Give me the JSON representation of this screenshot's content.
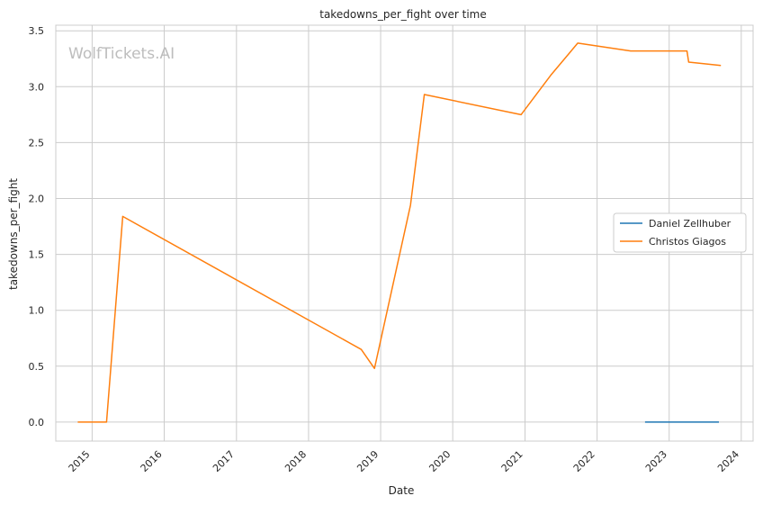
{
  "chart_data": {
    "type": "line",
    "title": "takedowns_per_fight over time",
    "xlabel": "Date",
    "ylabel": "takedowns_per_fight",
    "watermark": "WolfTickets.AI",
    "xlim": [
      "2014-07-01",
      "2024-03-01"
    ],
    "ylim": [
      -0.17,
      3.55
    ],
    "x_ticks": [
      "2015",
      "2016",
      "2017",
      "2018",
      "2019",
      "2020",
      "2021",
      "2022",
      "2023",
      "2024"
    ],
    "y_ticks": [
      "0.0",
      "0.5",
      "1.0",
      "1.5",
      "2.0",
      "2.5",
      "3.0",
      "3.5"
    ],
    "grid": true,
    "legend_position": "center-right",
    "series": [
      {
        "name": "Daniel Zellhuber",
        "color": "#1f77b4",
        "points": [
          {
            "x": "2022-09-01",
            "y": 0.0
          },
          {
            "x": "2023-09-10",
            "y": 0.0
          }
        ]
      },
      {
        "name": "Christos Giagos",
        "color": "#ff7f0e",
        "points": [
          {
            "x": "2014-10-20",
            "y": 0.0
          },
          {
            "x": "2015-03-15",
            "y": 0.0
          },
          {
            "x": "2015-06-05",
            "y": 1.84
          },
          {
            "x": "2018-09-25",
            "y": 0.65
          },
          {
            "x": "2018-12-01",
            "y": 0.48
          },
          {
            "x": "2019-06-01",
            "y": 1.94
          },
          {
            "x": "2019-08-10",
            "y": 2.93
          },
          {
            "x": "2020-12-12",
            "y": 2.75
          },
          {
            "x": "2021-05-15",
            "y": 3.11
          },
          {
            "x": "2021-09-25",
            "y": 3.39
          },
          {
            "x": "2022-06-20",
            "y": 3.32
          },
          {
            "x": "2023-04-01",
            "y": 3.32
          },
          {
            "x": "2023-04-10",
            "y": 3.22
          },
          {
            "x": "2023-09-20",
            "y": 3.19
          }
        ]
      }
    ]
  }
}
